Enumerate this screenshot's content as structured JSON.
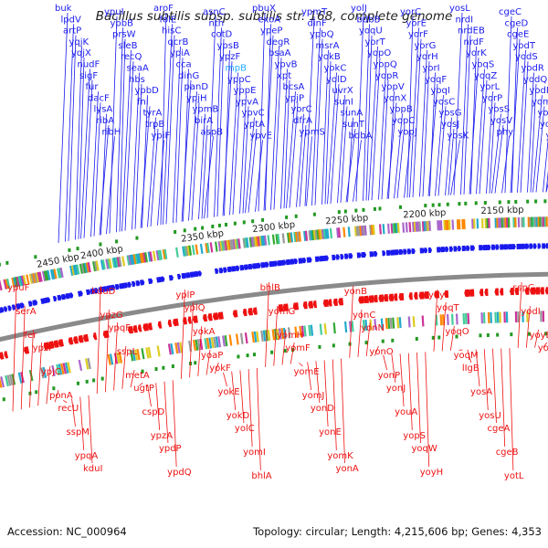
{
  "title": "Bacillus subtilis subsp. subtilis str. 168, complete genome",
  "accession": "Accession: NC_000964",
  "summary": "Topology: circular; Length: 4,215,606 bp; Genes: 4,353",
  "colors": {
    "forward_strand": "#1a1aee",
    "reverse_strand": "#ee1111",
    "backbone": "#8a8a8a",
    "rna_gene": "#22aaff",
    "gc_marker": "#229922"
  },
  "kbp_ticks": [
    "2450 kbp",
    "2400 kbp",
    "2350 kbp",
    "2300 kbp",
    "2250 kbp",
    "2200 kbp",
    "2150 kbp"
  ],
  "forward_genes": [
    {
      "name": "buk",
      "highlight": false
    },
    {
      "name": "lpdV",
      "highlight": false
    },
    {
      "name": "artP",
      "highlight": false
    },
    {
      "name": "yqjK",
      "highlight": false
    },
    {
      "name": "yqjX",
      "highlight": false
    },
    {
      "name": "nudF",
      "highlight": false
    },
    {
      "name": "sigF",
      "highlight": false
    },
    {
      "name": "fur",
      "highlight": false
    },
    {
      "name": "dacF",
      "highlight": false
    },
    {
      "name": "lysA",
      "highlight": false
    },
    {
      "name": "ribA",
      "highlight": false
    },
    {
      "name": "ribH",
      "highlight": false
    },
    {
      "name": "ypuI",
      "highlight": false
    },
    {
      "name": "ypbB",
      "highlight": false
    },
    {
      "name": "prsW",
      "highlight": false
    },
    {
      "name": "sleB",
      "highlight": false
    },
    {
      "name": "recQ",
      "highlight": false
    },
    {
      "name": "seaA",
      "highlight": false
    },
    {
      "name": "hbs",
      "highlight": false
    },
    {
      "name": "ypbD",
      "highlight": false
    },
    {
      "name": "fni",
      "highlight": false
    },
    {
      "name": "tyrA",
      "highlight": false
    },
    {
      "name": "trpB",
      "highlight": false
    },
    {
      "name": "ypiF",
      "highlight": false
    },
    {
      "name": "aroF",
      "highlight": false
    },
    {
      "name": "folE",
      "highlight": false
    },
    {
      "name": "hisC",
      "highlight": false
    },
    {
      "name": "qcrB",
      "highlight": false
    },
    {
      "name": "ypiA",
      "highlight": false
    },
    {
      "name": "cca",
      "highlight": false
    },
    {
      "name": "dinG",
      "highlight": false
    },
    {
      "name": "panD",
      "highlight": false
    },
    {
      "name": "ypjH",
      "highlight": false
    },
    {
      "name": "ypmB",
      "highlight": false
    },
    {
      "name": "birA",
      "highlight": false
    },
    {
      "name": "aspB",
      "highlight": false
    },
    {
      "name": "asnC",
      "highlight": false
    },
    {
      "name": "nth",
      "highlight": false
    },
    {
      "name": "cotD",
      "highlight": false
    },
    {
      "name": "ypsB",
      "highlight": false
    },
    {
      "name": "ypzF",
      "highlight": false
    },
    {
      "name": "rnpB",
      "highlight": true
    },
    {
      "name": "yppC",
      "highlight": false
    },
    {
      "name": "yppE",
      "highlight": false
    },
    {
      "name": "ypvA",
      "highlight": false
    },
    {
      "name": "ypvC",
      "highlight": false
    },
    {
      "name": "yptA",
      "highlight": false
    },
    {
      "name": "ypvE",
      "highlight": false
    },
    {
      "name": "pbuX",
      "highlight": false
    },
    {
      "name": "exoA",
      "highlight": false
    },
    {
      "name": "ypeP",
      "highlight": false
    },
    {
      "name": "degR",
      "highlight": false
    },
    {
      "name": "bsaA",
      "highlight": false
    },
    {
      "name": "ypvB",
      "highlight": false
    },
    {
      "name": "xpt",
      "highlight": false
    },
    {
      "name": "bcsA",
      "highlight": false
    },
    {
      "name": "ypjP",
      "highlight": false
    },
    {
      "name": "yorC",
      "highlight": false
    },
    {
      "name": "dfrA",
      "highlight": false
    },
    {
      "name": "ypmS",
      "highlight": false
    },
    {
      "name": "ypmT",
      "highlight": false
    },
    {
      "name": "dinF",
      "highlight": false
    },
    {
      "name": "ypbQ",
      "highlight": false
    },
    {
      "name": "msrA",
      "highlight": false
    },
    {
      "name": "yokB",
      "highlight": false
    },
    {
      "name": "yokC",
      "highlight": false
    },
    {
      "name": "yolD",
      "highlight": false
    },
    {
      "name": "uvrX",
      "highlight": false
    },
    {
      "name": "sunI",
      "highlight": false
    },
    {
      "name": "sunA",
      "highlight": false
    },
    {
      "name": "sunT",
      "highlight": false
    },
    {
      "name": "bdbA",
      "highlight": false
    },
    {
      "name": "yolJ",
      "highlight": false
    },
    {
      "name": "bdbB",
      "highlight": false
    },
    {
      "name": "yoqU",
      "highlight": false
    },
    {
      "name": "yorT",
      "highlight": false
    },
    {
      "name": "yopO",
      "highlight": false
    },
    {
      "name": "yopQ",
      "highlight": false
    },
    {
      "name": "yopR",
      "highlight": false
    },
    {
      "name": "yopV",
      "highlight": false
    },
    {
      "name": "yonX",
      "highlight": false
    },
    {
      "name": "yopB",
      "highlight": false
    },
    {
      "name": "yopC",
      "highlight": false
    },
    {
      "name": "yopJ",
      "highlight": false
    },
    {
      "name": "yorC",
      "highlight": false
    },
    {
      "name": "yorE",
      "highlight": false
    },
    {
      "name": "yorF",
      "highlight": false
    },
    {
      "name": "yorG",
      "highlight": false
    },
    {
      "name": "yorH",
      "highlight": false
    },
    {
      "name": "yorI",
      "highlight": false
    },
    {
      "name": "yoqF",
      "highlight": false
    },
    {
      "name": "yoqI",
      "highlight": false
    },
    {
      "name": "yosC",
      "highlight": false
    },
    {
      "name": "yosG",
      "highlight": false
    },
    {
      "name": "yosJ",
      "highlight": false
    },
    {
      "name": "yosK",
      "highlight": false
    },
    {
      "name": "yosL",
      "highlight": false
    },
    {
      "name": "nrdI",
      "highlight": false
    },
    {
      "name": "nrdEB",
      "highlight": false
    },
    {
      "name": "nrdF",
      "highlight": false
    },
    {
      "name": "yorK",
      "highlight": false
    },
    {
      "name": "yoqS",
      "highlight": false
    },
    {
      "name": "yoqZ",
      "highlight": false
    },
    {
      "name": "yorL",
      "highlight": false
    },
    {
      "name": "yorP",
      "highlight": false
    },
    {
      "name": "yosS",
      "highlight": false
    },
    {
      "name": "yosV",
      "highlight": false
    },
    {
      "name": "phy",
      "highlight": false
    },
    {
      "name": "cgeC",
      "highlight": false
    },
    {
      "name": "cgeD",
      "highlight": false
    },
    {
      "name": "cgeE",
      "highlight": false
    },
    {
      "name": "yodT",
      "highlight": false
    },
    {
      "name": "yodS",
      "highlight": false
    },
    {
      "name": "yodR",
      "highlight": false
    },
    {
      "name": "yodQ",
      "highlight": false
    },
    {
      "name": "yodP",
      "highlight": false
    },
    {
      "name": "yomL",
      "highlight": false
    },
    {
      "name": "yozP",
      "highlight": false
    },
    {
      "name": "youB",
      "highlight": false
    },
    {
      "name": "yonI",
      "highlight": false
    }
  ],
  "reverse_genes": [
    {
      "name": "ypuF"
    },
    {
      "name": "serA"
    },
    {
      "name": "fer"
    },
    {
      "name": "ypzI"
    },
    {
      "name": "ypjC"
    },
    {
      "name": "ponA"
    },
    {
      "name": "recU"
    },
    {
      "name": "sspM"
    },
    {
      "name": "ypqA"
    },
    {
      "name": "kduI"
    },
    {
      "name": "kduD"
    },
    {
      "name": "ypzG"
    },
    {
      "name": "ypqF"
    },
    {
      "name": "sspL"
    },
    {
      "name": "metA"
    },
    {
      "name": "ugtP"
    },
    {
      "name": "cspD"
    },
    {
      "name": "ypzA"
    },
    {
      "name": "ypdP"
    },
    {
      "name": "ypdQ"
    },
    {
      "name": "yplP"
    },
    {
      "name": "yplQ"
    },
    {
      "name": "yokA"
    },
    {
      "name": "yoaP"
    },
    {
      "name": "yokF"
    },
    {
      "name": "yokE"
    },
    {
      "name": "yokD"
    },
    {
      "name": "yolC"
    },
    {
      "name": "yomI"
    },
    {
      "name": "bhlA"
    },
    {
      "name": "bhlB"
    },
    {
      "name": "yomG"
    },
    {
      "name": "yomH"
    },
    {
      "name": "yomF"
    },
    {
      "name": "yomE"
    },
    {
      "name": "yomJ"
    },
    {
      "name": "yonD"
    },
    {
      "name": "yonE"
    },
    {
      "name": "yomK"
    },
    {
      "name": "yonA"
    },
    {
      "name": "yonB"
    },
    {
      "name": "yonC"
    },
    {
      "name": "yonN"
    },
    {
      "name": "yonO"
    },
    {
      "name": "yonP"
    },
    {
      "name": "yonJ"
    },
    {
      "name": "youA"
    },
    {
      "name": "yopS"
    },
    {
      "name": "yoqW"
    },
    {
      "name": "yoyH"
    },
    {
      "name": "yoyI"
    },
    {
      "name": "yoqT"
    },
    {
      "name": "yoqO"
    },
    {
      "name": "yoqM"
    },
    {
      "name": "lIgB"
    },
    {
      "name": "yosA"
    },
    {
      "name": "yosU"
    },
    {
      "name": "cgeA"
    },
    {
      "name": "cgeB"
    },
    {
      "name": "yotL"
    },
    {
      "name": "sspC"
    },
    {
      "name": "yodI"
    },
    {
      "name": "yoyE"
    },
    {
      "name": "yoyF"
    }
  ]
}
